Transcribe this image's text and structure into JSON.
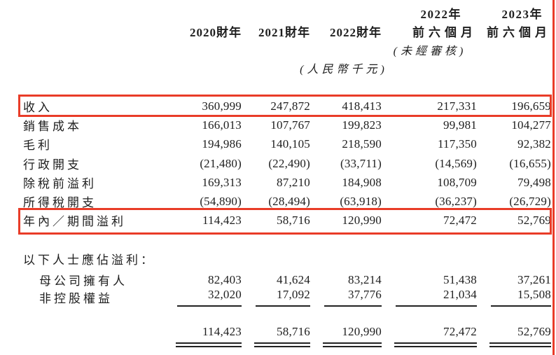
{
  "page": {
    "background": "#ffffff",
    "text_color": "#1e1e1e"
  },
  "annotation": {
    "color": "#e93c28",
    "highlighted_rows": [
      "收入",
      "年內／期間溢利"
    ],
    "right_edge_line": true
  },
  "header": {
    "year_2022": "2022年",
    "year_2023": "2023年",
    "fy2020": "2020財年",
    "fy2021": "2021財年",
    "fy2022": "2022財年",
    "first_half_2022": "前六個月",
    "first_half_2023": "前六個月",
    "unaudited_note": "(未經審核)",
    "currency_note": "(人民幣千元)"
  },
  "rows": [
    {
      "label": "收入",
      "values": [
        "360,999",
        "247,872",
        "418,413",
        "217,331",
        "196,659"
      ],
      "highlighted": true
    },
    {
      "label": "銷售成本",
      "values": [
        "166,013",
        "107,767",
        "199,823",
        "99,981",
        "104,277"
      ],
      "highlighted": false
    },
    {
      "label": "毛利",
      "values": [
        "194,986",
        "140,105",
        "218,590",
        "117,350",
        "92,382"
      ],
      "highlighted": false
    },
    {
      "label": "行政開支",
      "values": [
        "(21,480)",
        "(22,490)",
        "(33,711)",
        "(14,569)",
        "(16,655)"
      ],
      "highlighted": false
    },
    {
      "label": "除稅前溢利",
      "values": [
        "169,313",
        "87,210",
        "184,908",
        "108,709",
        "79,498"
      ],
      "highlighted": false
    },
    {
      "label": "所得稅開支",
      "values": [
        "(54,890)",
        "(28,494)",
        "(63,918)",
        "(36,237)",
        "(26,729)"
      ],
      "highlighted": false
    },
    {
      "label": "年內／期間溢利",
      "values": [
        "114,423",
        "58,716",
        "120,990",
        "72,472",
        "52,769"
      ],
      "highlighted": true
    }
  ],
  "attribution": {
    "section_label": "以下人士應佔溢利：",
    "rows": [
      {
        "label": "母公司擁有人",
        "values": [
          "82,403",
          "41,624",
          "83,214",
          "51,438",
          "37,261"
        ]
      },
      {
        "label": "非控股權益",
        "values": [
          "32,020",
          "17,092",
          "37,776",
          "21,034",
          "15,508"
        ]
      }
    ],
    "total_values": [
      "114,423",
      "58,716",
      "120,990",
      "72,472",
      "52,769"
    ]
  }
}
